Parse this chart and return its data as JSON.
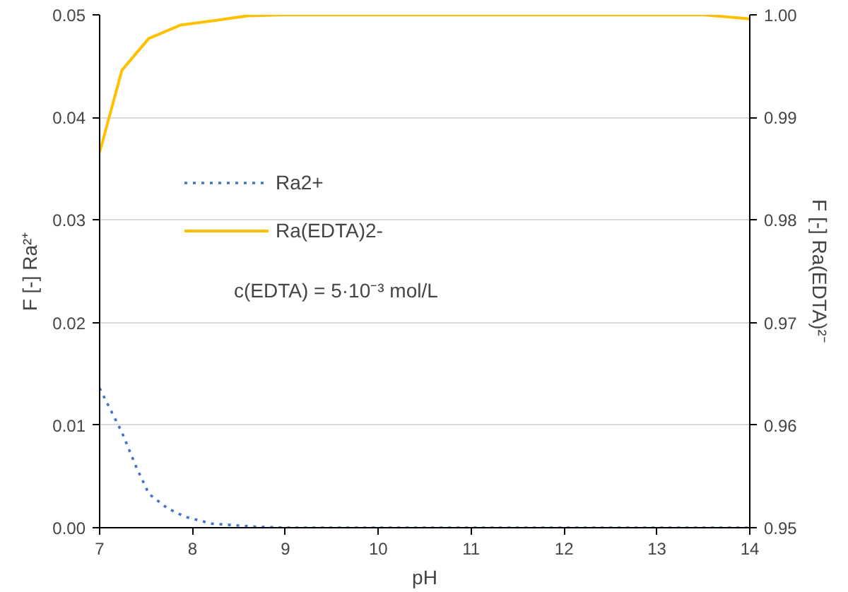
{
  "chart_data": {
    "type": "line",
    "xlabel": "pH",
    "ylabel": "F [-] Ra²⁺",
    "y2label": "F [-] Ra(EDTA)²⁻",
    "xlim": [
      7,
      14
    ],
    "xticks": [
      7,
      8,
      9,
      10,
      11,
      12,
      13,
      14
    ],
    "ylim": [
      0,
      0.05
    ],
    "yticks": [
      {
        "value": 0,
        "label": "0.00"
      },
      {
        "value": 0.01,
        "label": "0.01"
      },
      {
        "value": 0.02,
        "label": "0.02"
      },
      {
        "value": 0.03,
        "label": "0.03"
      },
      {
        "value": 0.04,
        "label": "0.04"
      },
      {
        "value": 0.05,
        "label": "0.05"
      }
    ],
    "y2lim": [
      0.95,
      1.0
    ],
    "y2ticks": [
      {
        "value": 0.95,
        "label": "0.95"
      },
      {
        "value": 0.96,
        "label": "0.96"
      },
      {
        "value": 0.97,
        "label": "0.97"
      },
      {
        "value": 0.98,
        "label": "0.98"
      },
      {
        "value": 0.99,
        "label": "0.99"
      },
      {
        "value": 1.0,
        "label": "1.00"
      }
    ],
    "grid": "y",
    "legend": "top left",
    "annotations": [
      "c(EDTA) = 5·10⁻³ mol/L"
    ],
    "series": [
      {
        "name": "Ra2+",
        "color": "#4472c4",
        "line_style": "dotted",
        "x": [
          7,
          7.24,
          7.39,
          7.53,
          7.73,
          7.91,
          8.2,
          8.67,
          9,
          10,
          11,
          12,
          13,
          14
        ],
        "values": [
          0.0136,
          0.0093,
          0.006,
          0.0033,
          0.0019,
          0.0011,
          0.0004,
          0.0001,
          0,
          0,
          0,
          0,
          0,
          0
        ]
      },
      {
        "name": "Ra(EDTA)2-",
        "color": "#ffc000",
        "line_style": "solid",
        "axis": "y2",
        "x": [
          7,
          7.24,
          7.53,
          7.87,
          8.2,
          8.59,
          9,
          10,
          11,
          12,
          13,
          13.5,
          14
        ],
        "values": [
          0.9866,
          0.9946,
          0.9977,
          0.999,
          0.9994,
          0.9999,
          1.0,
          1.0,
          1.0,
          1.0,
          1.0,
          1.0,
          0.9996
        ]
      }
    ]
  }
}
